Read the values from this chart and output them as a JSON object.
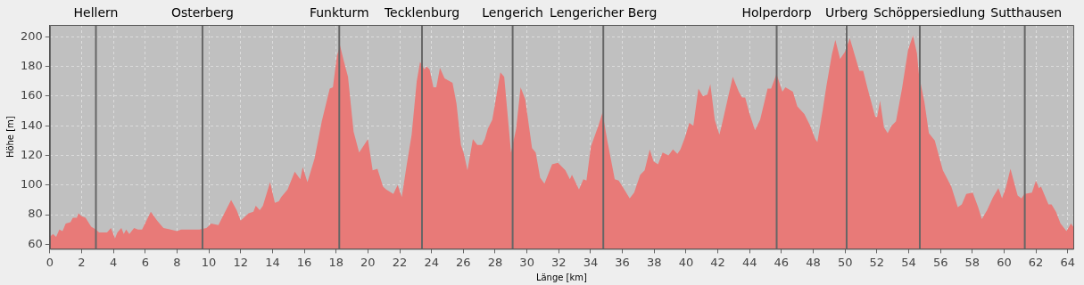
{
  "chart_data": {
    "type": "area",
    "xlabel": "Länge [km]",
    "ylabel": "Höhe [m]",
    "xlim": [
      0,
      64.35
    ],
    "xticks": [
      0,
      2,
      4,
      6,
      8,
      10,
      12,
      14,
      16,
      18,
      20,
      22,
      24,
      26,
      28,
      30,
      32,
      34,
      36,
      38,
      40,
      42,
      44,
      46,
      48,
      50,
      52,
      54,
      56,
      58,
      60,
      62,
      64
    ],
    "ylim": [
      57,
      208
    ],
    "yticks": [
      60,
      80,
      100,
      120,
      140,
      160,
      180,
      200
    ],
    "grid": true,
    "legend": false,
    "marker": "none",
    "ref_lines": [
      {
        "axis": "x",
        "value": 2.9,
        "label": "Hellern",
        "color": "#666666"
      },
      {
        "axis": "x",
        "value": 9.6,
        "label": "Osterberg",
        "color": "#666666"
      },
      {
        "axis": "x",
        "value": 18.2,
        "label": "Funkturm",
        "color": "#666666"
      },
      {
        "axis": "x",
        "value": 23.4,
        "label": "Tecklenburg",
        "color": "#666666"
      },
      {
        "axis": "x",
        "value": 29.1,
        "label": "Lengerich",
        "color": "#666666"
      },
      {
        "axis": "x",
        "value": 34.8,
        "label": "Lengericher Berg",
        "color": "#666666"
      },
      {
        "axis": "x",
        "value": 45.7,
        "label": "Holperdorp",
        "color": "#666666"
      },
      {
        "axis": "x",
        "value": 50.1,
        "label": "Urberg",
        "color": "#666666"
      },
      {
        "axis": "x",
        "value": 54.7,
        "label": "Schöppersiedlung",
        "color": "#666666"
      },
      {
        "axis": "x",
        "value": 61.3,
        "label": "Sutthausen",
        "color": "#666666"
      }
    ],
    "series": [
      {
        "color": "#e87a78",
        "x": [
          0,
          0.2,
          0.4,
          0.6,
          0.8,
          1.0,
          1.3,
          1.45,
          1.7,
          1.8,
          2.0,
          2.25,
          2.6,
          2.9,
          3.1,
          3.6,
          3.85,
          4.1,
          4.25,
          4.5,
          4.65,
          4.8,
          5.0,
          5.3,
          5.55,
          5.8,
          6.35,
          6.75,
          7.15,
          7.6,
          8.0,
          8.25,
          9.4,
          9.85,
          10.15,
          10.6,
          11.4,
          11.75,
          12.0,
          12.5,
          12.8,
          12.95,
          13.2,
          13.4,
          13.85,
          14.15,
          14.4,
          14.55,
          14.95,
          15.4,
          15.75,
          15.9,
          16.2,
          16.65,
          17.1,
          17.6,
          17.8,
          18.05,
          18.25,
          18.5,
          18.75,
          19.1,
          19.45,
          20.0,
          20.3,
          20.6,
          20.95,
          21.15,
          21.6,
          21.87,
          22.13,
          22.43,
          22.75,
          23.07,
          23.28,
          23.56,
          23.69,
          23.88,
          24.12,
          24.3,
          24.53,
          24.82,
          25.32,
          25.57,
          25.85,
          26.04,
          26.26,
          26.6,
          26.88,
          27.16,
          27.35,
          27.54,
          27.82,
          28.33,
          28.57,
          29.0,
          29.32,
          29.6,
          29.89,
          30.32,
          30.55,
          30.83,
          31.1,
          31.58,
          31.95,
          32.42,
          32.7,
          32.83,
          33.27,
          33.55,
          33.74,
          34.02,
          34.49,
          34.75,
          35.05,
          35.52,
          35.77,
          36.18,
          36.46,
          36.74,
          37.12,
          37.4,
          37.72,
          37.96,
          38.24,
          38.53,
          38.9,
          39.18,
          39.46,
          39.65,
          39.93,
          40.21,
          40.46,
          40.78,
          41.06,
          41.34,
          41.53,
          41.81,
          42.1,
          42.28,
          42.66,
          42.94,
          43.32,
          43.53,
          43.72,
          44.0,
          44.34,
          44.66,
          45.13,
          45.35,
          45.69,
          46.06,
          46.25,
          46.72,
          47.0,
          47.44,
          47.81,
          48.13,
          48.26,
          48.6,
          48.83,
          49.17,
          49.39,
          49.69,
          50.0,
          50.3,
          50.63,
          50.9,
          51.14,
          51.42,
          51.9,
          52.02,
          52.2,
          52.45,
          52.68,
          52.92,
          53.2,
          53.58,
          53.96,
          54.27,
          54.52,
          54.65,
          54.99,
          55.27,
          55.64,
          56.15,
          56.39,
          56.68,
          57.09,
          57.34,
          57.62,
          58.03,
          58.37,
          58.6,
          58.93,
          59.31,
          59.64,
          59.87,
          60.1,
          60.4,
          60.85,
          61.09,
          61.28,
          61.75,
          62.0,
          62.19,
          62.32,
          62.79,
          62.98,
          63.26,
          63.55,
          63.92,
          64.2,
          64.35
        ],
        "values": [
          65,
          67,
          65,
          70,
          69,
          74,
          75,
          78,
          78,
          81,
          79,
          78,
          72,
          70,
          68,
          68,
          71,
          64,
          68,
          71,
          67,
          70,
          67,
          71,
          70,
          70,
          82,
          76,
          71,
          70,
          69,
          70,
          70,
          71,
          74,
          73,
          90,
          83,
          76,
          81,
          82,
          86,
          83,
          86,
          102,
          88,
          89,
          92,
          97,
          109,
          104,
          112,
          102,
          118,
          143,
          165,
          166,
          187,
          194,
          183,
          173,
          136,
          122,
          131,
          110,
          111,
          99,
          97,
          94,
          100,
          92,
          113,
          134,
          170,
          183,
          178,
          180,
          178,
          166,
          166,
          179,
          172,
          169,
          155,
          127,
          121,
          110,
          131,
          127,
          127,
          131,
          138,
          144,
          176,
          173,
          122,
          138,
          166,
          158,
          125,
          122,
          105,
          101,
          114,
          115,
          110,
          104,
          107,
          97,
          104,
          103,
          126,
          140,
          149,
          130,
          104,
          103,
          96,
          91,
          95,
          107,
          110,
          124,
          116,
          114,
          122,
          120,
          124,
          121,
          124,
          132,
          142,
          140,
          165,
          160,
          161,
          168,
          144,
          134,
          142,
          160,
          173,
          163,
          159,
          159,
          148,
          137,
          144,
          165,
          165,
          175,
          163,
          166,
          163,
          153,
          148,
          140,
          131,
          129,
          151,
          167,
          188,
          198,
          185,
          190,
          199,
          187,
          177,
          177,
          165,
          146,
          146,
          157,
          139,
          135,
          140,
          143,
          165,
          191,
          201,
          189,
          174,
          156,
          135,
          130,
          110,
          105,
          99,
          85,
          87,
          94,
          95,
          85,
          77,
          83,
          92,
          98,
          91,
          98,
          111,
          93,
          91,
          94,
          95,
          103,
          98,
          99,
          87,
          87,
          82,
          74,
          69,
          74,
          72
        ]
      }
    ]
  }
}
